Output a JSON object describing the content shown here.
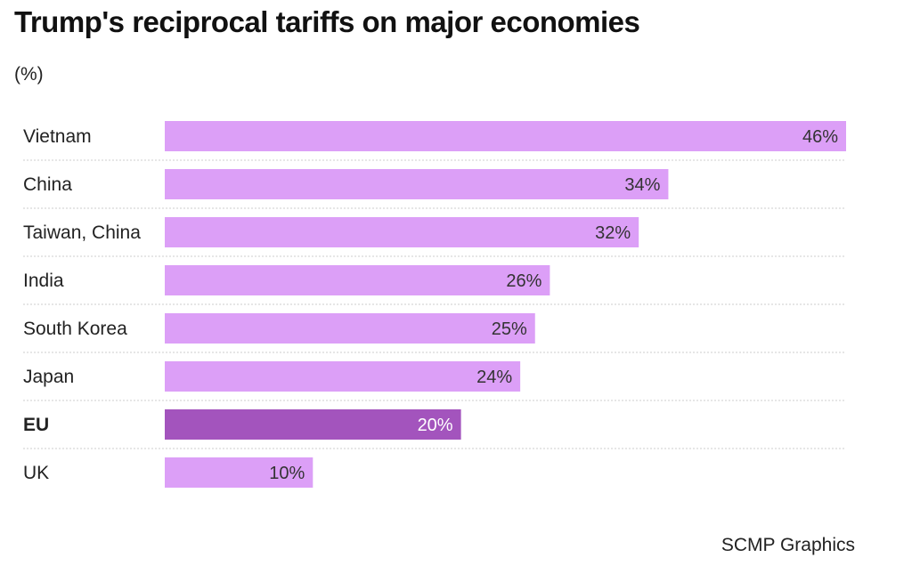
{
  "colors": {
    "bar": "#dc9ff7",
    "highlight_bar": "#a354bd",
    "label_text": "#333333",
    "highlight_label_text": "#ffffff",
    "divider": "#cccccc"
  },
  "chart_data": {
    "type": "bar",
    "orientation": "horizontal",
    "title": "Trump's reciprocal tariffs on major economies",
    "subtitle": "(%)",
    "unit": "%",
    "categories": [
      "Vietnam",
      "China",
      "Taiwan, China",
      "India",
      "South Korea",
      "Japan",
      "EU",
      "UK"
    ],
    "values": [
      46,
      34,
      32,
      26,
      25,
      24,
      20,
      10
    ],
    "data_labels": [
      "46%",
      "34%",
      "32%",
      "26%",
      "25%",
      "24%",
      "20%",
      "10%"
    ],
    "highlighted": [
      "EU"
    ],
    "xlim": [
      0,
      46
    ],
    "grid": false,
    "source": "SCMP Graphics"
  }
}
